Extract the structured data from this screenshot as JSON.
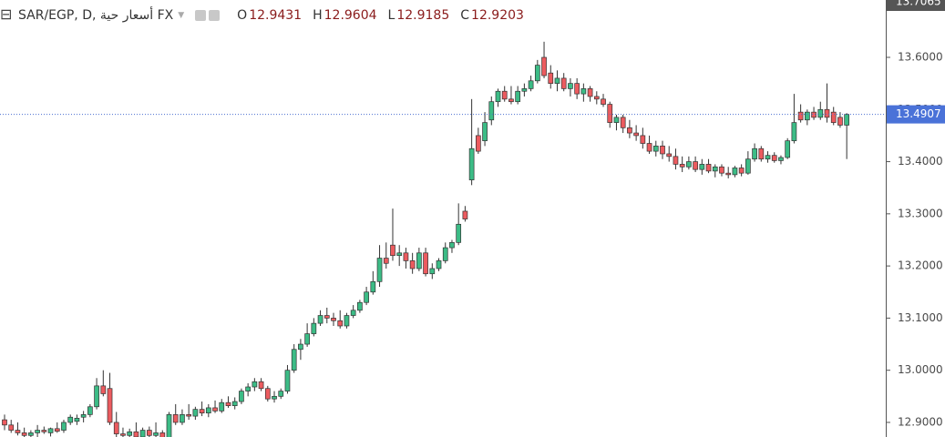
{
  "chart_data": {
    "type": "candlestick",
    "title": "SAR/EGP, D, أسعار حية FX",
    "legend_values": [
      {
        "label": "O",
        "value": 12.9431
      },
      {
        "label": "H",
        "value": 12.9604
      },
      {
        "label": "L",
        "value": 12.9185
      },
      {
        "label": "C",
        "value": 12.9203
      }
    ],
    "up_color": "#3cbc86",
    "down_color": "#ec5b5f",
    "wick_color": "#333333",
    "ylim": [
      12.872,
      13.71
    ],
    "yticks": [
      {
        "value": 12.9,
        "label": "12.9000"
      },
      {
        "value": 13.0,
        "label": "13.0000"
      },
      {
        "value": 13.1,
        "label": "13.1000"
      },
      {
        "value": 13.2,
        "label": "13.2000"
      },
      {
        "value": 13.3,
        "label": "13.3000"
      },
      {
        "value": 13.4,
        "label": "13.4000"
      },
      {
        "value": 13.5,
        "label": "13.5000"
      },
      {
        "value": 13.6,
        "label": "13.6000"
      }
    ],
    "last_price": {
      "value": 13.4907,
      "label": "13.4907"
    },
    "top_price": {
      "value": 13.7065,
      "label": "13.7065"
    },
    "candles": [
      [
        12.905,
        12.915,
        12.885,
        12.895
      ],
      [
        12.895,
        12.905,
        12.88,
        12.885
      ],
      [
        12.885,
        12.9,
        12.875,
        12.88
      ],
      [
        12.88,
        12.89,
        12.87,
        12.875
      ],
      [
        12.875,
        12.885,
        12.868,
        12.88
      ],
      [
        12.88,
        12.895,
        12.872,
        12.885
      ],
      [
        12.885,
        12.892,
        12.878,
        12.882
      ],
      [
        12.88,
        12.89,
        12.873,
        12.888
      ],
      [
        12.888,
        12.9,
        12.88,
        12.883
      ],
      [
        12.885,
        12.905,
        12.88,
        12.9
      ],
      [
        12.9,
        12.915,
        12.895,
        12.91
      ],
      [
        12.902,
        12.915,
        12.895,
        12.908
      ],
      [
        12.91,
        12.922,
        12.9,
        12.915
      ],
      [
        12.915,
        12.935,
        12.91,
        12.93
      ],
      [
        12.93,
        12.985,
        12.925,
        12.97
      ],
      [
        12.97,
        13.0,
        12.95,
        12.955
      ],
      [
        12.965,
        12.995,
        12.895,
        12.9
      ],
      [
        12.9,
        12.92,
        12.87,
        12.878
      ],
      [
        12.878,
        12.89,
        12.865,
        12.875
      ],
      [
        12.875,
        12.888,
        12.868,
        12.882
      ],
      [
        12.882,
        12.9,
        12.87,
        12.872
      ],
      [
        12.872,
        12.89,
        12.868,
        12.885
      ],
      [
        12.885,
        12.892,
        12.87,
        12.875
      ],
      [
        12.875,
        12.9,
        12.868,
        12.88
      ],
      [
        12.88,
        12.885,
        12.865,
        12.87
      ],
      [
        12.87,
        12.92,
        12.868,
        12.915
      ],
      [
        12.915,
        12.935,
        12.895,
        12.9
      ],
      [
        12.9,
        12.925,
        12.895,
        12.915
      ],
      [
        12.915,
        12.935,
        12.905,
        12.912
      ],
      [
        12.912,
        12.93,
        12.905,
        12.925
      ],
      [
        12.925,
        12.94,
        12.912,
        12.918
      ],
      [
        12.918,
        12.935,
        12.91,
        12.928
      ],
      [
        12.928,
        12.942,
        12.918,
        12.922
      ],
      [
        12.922,
        12.945,
        12.918,
        12.938
      ],
      [
        12.938,
        12.95,
        12.928,
        12.932
      ],
      [
        12.932,
        12.948,
        12.925,
        12.94
      ],
      [
        12.94,
        12.965,
        12.935,
        12.96
      ],
      [
        12.96,
        12.975,
        12.95,
        12.968
      ],
      [
        12.968,
        12.985,
        12.96,
        12.978
      ],
      [
        12.978,
        12.985,
        12.96,
        12.965
      ],
      [
        12.965,
        12.97,
        12.94,
        12.945
      ],
      [
        12.945,
        12.96,
        12.938,
        12.95
      ],
      [
        12.95,
        12.965,
        12.945,
        12.96
      ],
      [
        12.96,
        13.01,
        12.955,
        13.0
      ],
      [
        13.0,
        13.05,
        12.995,
        13.04
      ],
      [
        13.04,
        13.06,
        13.02,
        13.05
      ],
      [
        13.05,
        13.09,
        13.045,
        13.07
      ],
      [
        13.07,
        13.1,
        13.065,
        13.09
      ],
      [
        13.09,
        13.115,
        13.085,
        13.105
      ],
      [
        13.105,
        13.12,
        13.09,
        13.1
      ],
      [
        13.1,
        13.11,
        13.085,
        13.095
      ],
      [
        13.095,
        13.115,
        13.08,
        13.085
      ],
      [
        13.085,
        13.11,
        13.08,
        13.105
      ],
      [
        13.105,
        13.125,
        13.1,
        13.115
      ],
      [
        13.115,
        13.135,
        13.11,
        13.13
      ],
      [
        13.13,
        13.16,
        13.125,
        13.15
      ],
      [
        13.15,
        13.19,
        13.145,
        13.17
      ],
      [
        13.17,
        13.24,
        13.16,
        13.215
      ],
      [
        13.215,
        13.245,
        13.195,
        13.205
      ],
      [
        13.24,
        13.31,
        13.21,
        13.22
      ],
      [
        13.22,
        13.24,
        13.2,
        13.225
      ],
      [
        13.225,
        13.235,
        13.195,
        13.21
      ],
      [
        13.21,
        13.225,
        13.185,
        13.195
      ],
      [
        13.195,
        13.235,
        13.19,
        13.225
      ],
      [
        13.225,
        13.235,
        13.18,
        13.185
      ],
      [
        13.185,
        13.205,
        13.175,
        13.195
      ],
      [
        13.195,
        13.215,
        13.19,
        13.21
      ],
      [
        13.21,
        13.245,
        13.205,
        13.235
      ],
      [
        13.235,
        13.25,
        13.225,
        13.245
      ],
      [
        13.245,
        13.32,
        13.24,
        13.28
      ],
      [
        13.305,
        13.315,
        13.285,
        13.29
      ],
      [
        13.365,
        13.52,
        13.355,
        13.425
      ],
      [
        13.45,
        13.465,
        13.415,
        13.42
      ],
      [
        13.44,
        13.495,
        13.43,
        13.475
      ],
      [
        13.48,
        13.525,
        13.47,
        13.515
      ],
      [
        13.515,
        13.54,
        13.505,
        13.535
      ],
      [
        13.535,
        13.545,
        13.515,
        13.52
      ],
      [
        13.52,
        13.545,
        13.51,
        13.515
      ],
      [
        13.515,
        13.545,
        13.51,
        13.535
      ],
      [
        13.535,
        13.55,
        13.525,
        13.54
      ],
      [
        13.54,
        13.565,
        13.535,
        13.555
      ],
      [
        13.555,
        13.595,
        13.55,
        13.585
      ],
      [
        13.6,
        13.63,
        13.56,
        13.565
      ],
      [
        13.57,
        13.585,
        13.54,
        13.55
      ],
      [
        13.55,
        13.575,
        13.535,
        13.56
      ],
      [
        13.56,
        13.57,
        13.535,
        13.54
      ],
      [
        13.54,
        13.56,
        13.525,
        13.55
      ],
      [
        13.55,
        13.56,
        13.52,
        13.53
      ],
      [
        13.53,
        13.55,
        13.515,
        13.54
      ],
      [
        13.54,
        13.545,
        13.515,
        13.525
      ],
      [
        13.525,
        13.535,
        13.51,
        13.52
      ],
      [
        13.52,
        13.53,
        13.505,
        13.51
      ],
      [
        13.51,
        13.515,
        13.465,
        13.475
      ],
      [
        13.475,
        13.49,
        13.46,
        13.485
      ],
      [
        13.485,
        13.49,
        13.455,
        13.465
      ],
      [
        13.465,
        13.48,
        13.445,
        13.455
      ],
      [
        13.455,
        13.47,
        13.44,
        13.45
      ],
      [
        13.45,
        13.465,
        13.425,
        13.435
      ],
      [
        13.435,
        13.45,
        13.415,
        13.42
      ],
      [
        13.42,
        13.44,
        13.41,
        13.43
      ],
      [
        13.43,
        13.44,
        13.405,
        13.415
      ],
      [
        13.415,
        13.43,
        13.4,
        13.41
      ],
      [
        13.41,
        13.425,
        13.385,
        13.395
      ],
      [
        13.395,
        13.41,
        13.38,
        13.39
      ],
      [
        13.39,
        13.41,
        13.385,
        13.4
      ],
      [
        13.4,
        13.41,
        13.38,
        13.385
      ],
      [
        13.385,
        13.405,
        13.375,
        13.395
      ],
      [
        13.395,
        13.405,
        13.378,
        13.382
      ],
      [
        13.382,
        13.395,
        13.37,
        13.39
      ],
      [
        13.39,
        13.395,
        13.372,
        13.378
      ],
      [
        13.378,
        13.39,
        13.368,
        13.375
      ],
      [
        13.375,
        13.392,
        13.37,
        13.388
      ],
      [
        13.388,
        13.395,
        13.372,
        13.378
      ],
      [
        13.378,
        13.42,
        13.375,
        13.405
      ],
      [
        13.405,
        13.435,
        13.4,
        13.425
      ],
      [
        13.425,
        13.43,
        13.4,
        13.405
      ],
      [
        13.405,
        13.42,
        13.398,
        13.412
      ],
      [
        13.412,
        13.418,
        13.398,
        13.402
      ],
      [
        13.402,
        13.412,
        13.395,
        13.408
      ],
      [
        13.408,
        13.445,
        13.405,
        13.44
      ],
      [
        13.44,
        13.53,
        13.435,
        13.475
      ],
      [
        13.495,
        13.51,
        13.475,
        13.48
      ],
      [
        13.48,
        13.5,
        13.47,
        13.495
      ],
      [
        13.495,
        13.505,
        13.48,
        13.485
      ],
      [
        13.485,
        13.515,
        13.48,
        13.5
      ],
      [
        13.5,
        13.55,
        13.475,
        13.485
      ],
      [
        13.495,
        13.505,
        13.47,
        13.475
      ],
      [
        13.485,
        13.495,
        13.465,
        13.47
      ],
      [
        13.47,
        13.493,
        13.405,
        13.4907
      ]
    ]
  }
}
